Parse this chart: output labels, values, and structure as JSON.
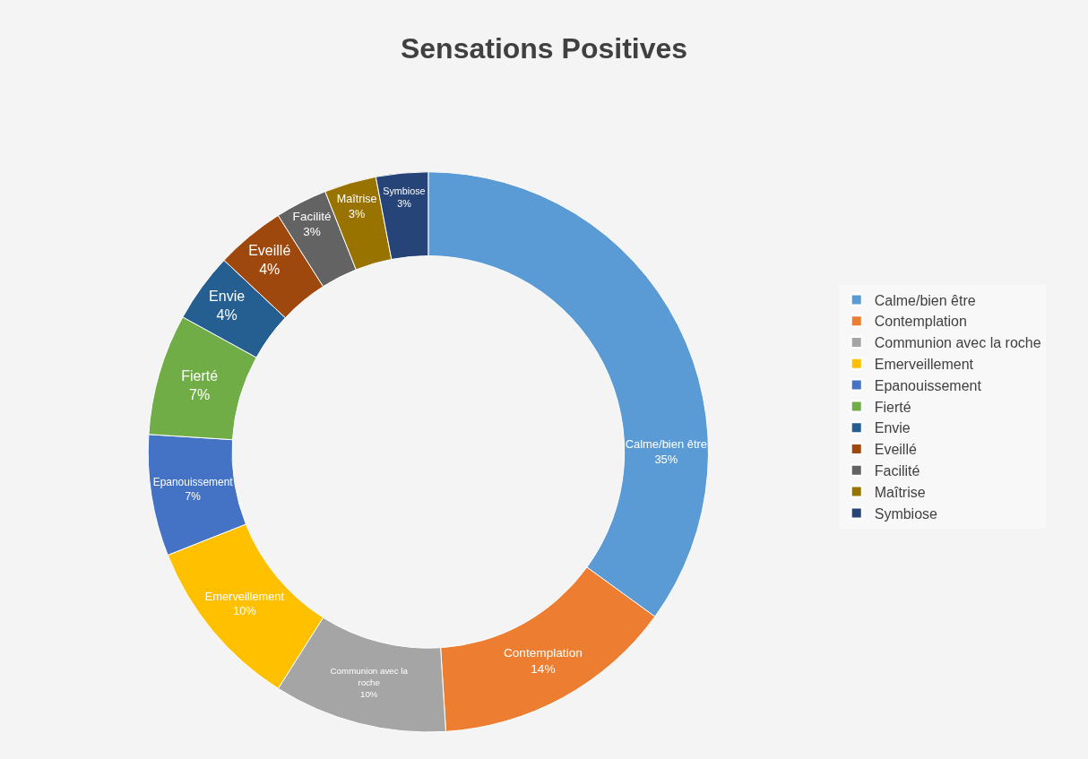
{
  "chart_data": {
    "type": "donut",
    "title": "Sensations Positives",
    "categories": [
      "Calme/bien être",
      "Contemplation",
      "Communion avec la roche",
      "Emerveillement",
      "Epanouissement",
      "Fierté",
      "Envie",
      "Eveillé",
      "Facilité",
      "Maîtrise",
      "Symbiose"
    ],
    "values": [
      35,
      14,
      10,
      10,
      7,
      7,
      4,
      4,
      3,
      3,
      3
    ],
    "value_labels": [
      "35%",
      "14%",
      "10%",
      "10%",
      "7%",
      "7%",
      "4%",
      "4%",
      "3%",
      "3%",
      "3%"
    ],
    "colors": [
      "#5b9bd5",
      "#ed7d31",
      "#a5a5a5",
      "#ffc000",
      "#4472c4",
      "#70ad47",
      "#255e91",
      "#9e480e",
      "#636363",
      "#997300",
      "#264478"
    ],
    "legend": "right"
  }
}
